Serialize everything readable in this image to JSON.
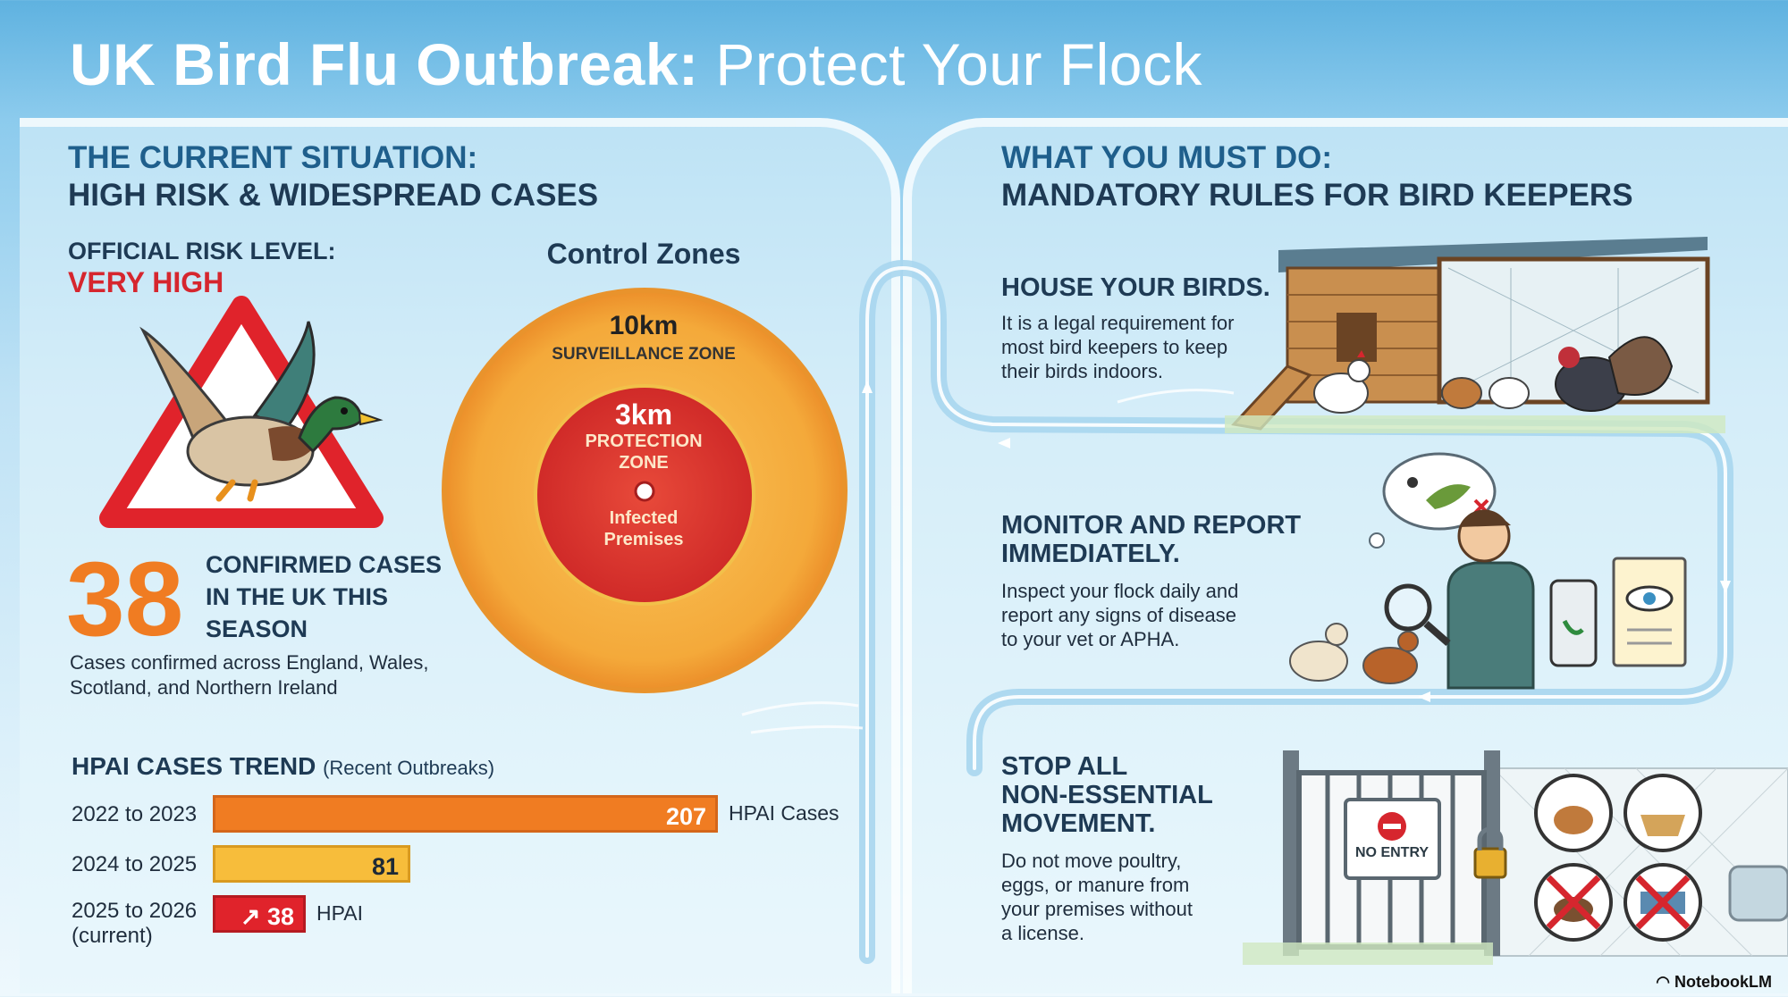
{
  "title": {
    "bold": "UK Bird Flu Outbreak:",
    "light": "Protect Your Flock"
  },
  "situation": {
    "heading_line1": "THE CURRENT SITUATION:",
    "heading_line2": "HIGH RISK & WIDESPREAD CASES",
    "risk_label": "OFFICIAL RISK LEVEL:",
    "risk_value": "VERY HIGH",
    "cases_number": "38",
    "cases_text": [
      "CONFIRMED CASES",
      "IN THE UK THIS",
      "SEASON"
    ],
    "cases_note_line1": "Cases confirmed across England, Wales,",
    "cases_note_line2": "Scotland, and Northern Ireland"
  },
  "control_zones": {
    "title": "Control Zones",
    "outer_distance": "10km",
    "outer_label": "SURVEILLANCE ZONE",
    "inner_distance": "3km",
    "inner_label_line1": "PROTECTION",
    "inner_label_line2": "ZONE",
    "center_label_line1": "Infected",
    "center_label_line2": "Premises"
  },
  "chart_data": {
    "type": "bar",
    "title": "HPAI CASES TREND",
    "subtitle": "(Recent Outbreaks)",
    "categories": [
      "2022 to 2023",
      "2024 to 2025",
      "2025 to 2026 (current)"
    ],
    "values": [
      207,
      81,
      38
    ],
    "value_labels": [
      "207",
      "81",
      "38"
    ],
    "legend": [
      "HPAI Cases",
      "",
      "HPAI"
    ],
    "colors": [
      "#f07c22",
      "#f7bd3b",
      "#e0232b"
    ]
  },
  "trend_labels": {
    "row1": "2022 to 2023",
    "row2": "2024 to 2025",
    "row3_line1": "2025 to 2026",
    "row3_line2": "(current)"
  },
  "rules": {
    "heading_line1": "WHAT YOU MUST DO:",
    "heading_line2": "MANDATORY RULES FOR BIRD KEEPERS",
    "house": {
      "title": "HOUSE YOUR BIRDS.",
      "text": [
        "It is a legal requirement for",
        "most bird keepers to keep",
        "their birds indoors."
      ]
    },
    "monitor": {
      "title_line1": "MONITOR AND REPORT",
      "title_line2": "IMMEDIATELY.",
      "text": [
        "Inspect your flock daily and",
        "report any signs of disease",
        "to your vet or APHA."
      ]
    },
    "movement": {
      "title_line1": "STOP ALL",
      "title_line2": "NON-ESSENTIAL",
      "title_line3": "MOVEMENT.",
      "text": [
        "Do not move poultry,",
        "eggs, or manure from",
        "your premises without",
        "a license."
      ],
      "sign": "NO ENTRY"
    }
  },
  "footer": "NotebookLM",
  "colors": {
    "accent_orange": "#f07c22",
    "accent_yellow": "#f7bd3b",
    "accent_red": "#e0232b",
    "heading_blue": "#1f5f8c"
  }
}
